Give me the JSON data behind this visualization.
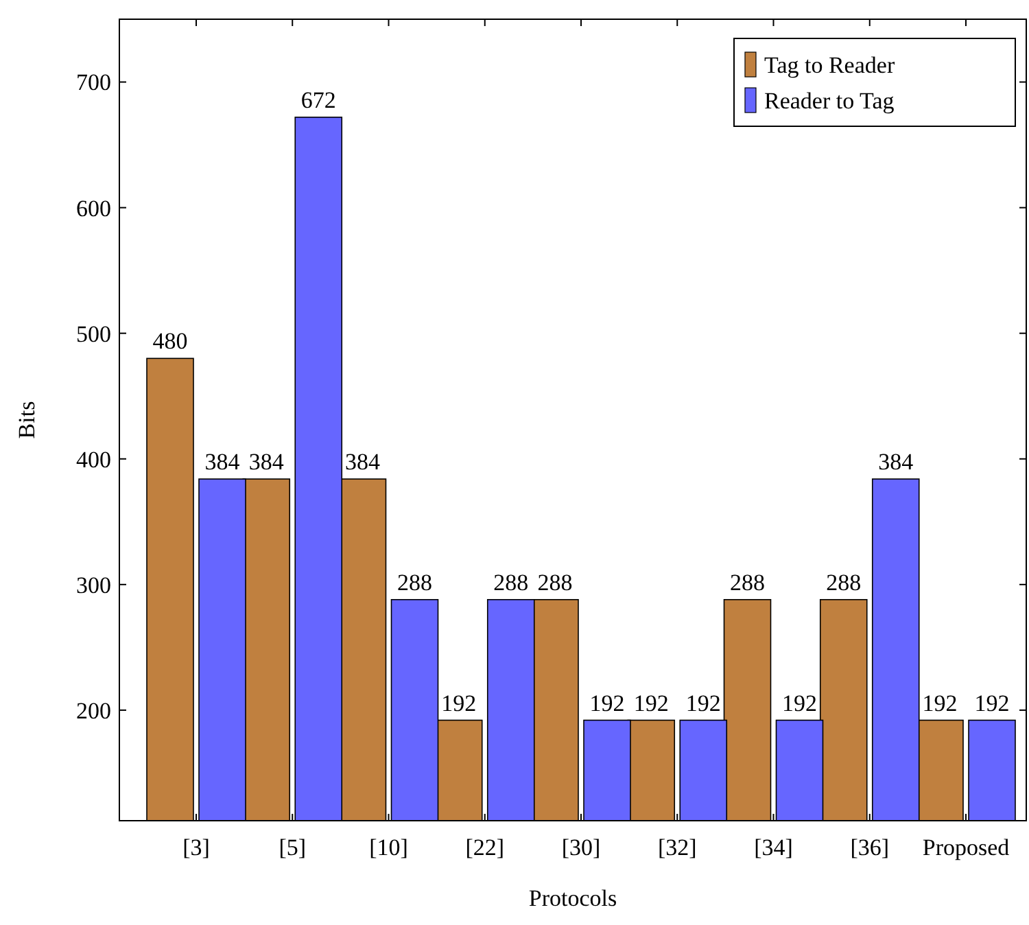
{
  "chart_data": {
    "type": "bar",
    "xlabel": "Protocols",
    "ylabel": "Bits",
    "categories": [
      "[3]",
      "[5]",
      "[10]",
      "[22]",
      "[30]",
      "[32]",
      "[34]",
      "[36]",
      "Proposed"
    ],
    "series": [
      {
        "name": "Tag to Reader",
        "color": "#c0803f",
        "values": [
          480,
          384,
          384,
          192,
          288,
          192,
          288,
          288,
          192
        ]
      },
      {
        "name": "Reader to Tag",
        "color": "#6666ff",
        "values": [
          384,
          672,
          288,
          288,
          192,
          192,
          192,
          384,
          192
        ]
      }
    ],
    "ylim": [
      112,
      750
    ],
    "yticks": [
      200,
      300,
      400,
      500,
      600,
      700
    ],
    "grid": false,
    "legend": "top right",
    "data_labels": true
  }
}
